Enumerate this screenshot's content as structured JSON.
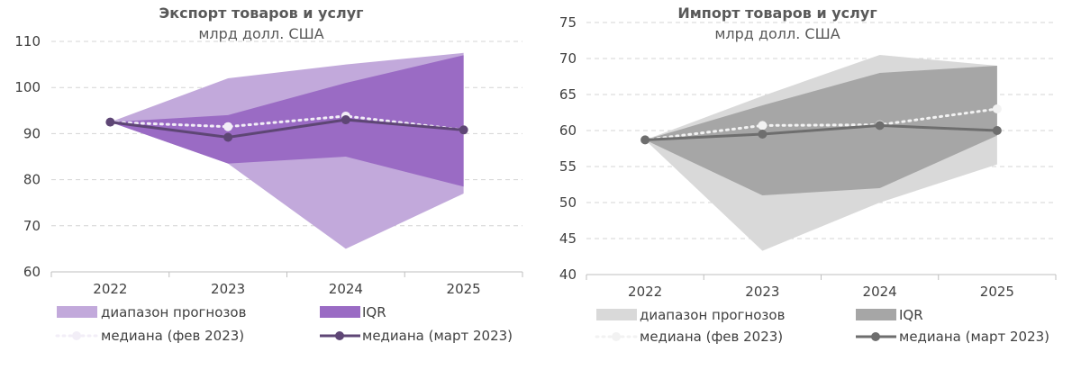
{
  "chart_data": [
    {
      "type": "area",
      "title": "Экспорт товаров и услуг",
      "subtitle": "млрд долл. США",
      "categories": [
        "2022",
        "2023",
        "2024",
        "2025"
      ],
      "ylim": [
        60,
        110
      ],
      "yticks": [
        60,
        70,
        80,
        90,
        100,
        110
      ],
      "grid": true,
      "legend_position": "bottom",
      "colors": {
        "range": "#c2a9db",
        "iqr": "#9a6bc4",
        "median_feb": "#f2eef7",
        "median_mar": "#5e4675",
        "grid": "#d4d4d4",
        "axis": "#bfbfbf"
      },
      "series": [
        {
          "name": "диапазон прогнозов",
          "kind": "band",
          "low": [
            92.5,
            83.5,
            65.0,
            77.0
          ],
          "high": [
            92.5,
            102.0,
            105.0,
            107.5
          ]
        },
        {
          "name": "IQR",
          "kind": "band",
          "low": [
            92.5,
            83.5,
            85.0,
            78.5
          ],
          "high": [
            92.5,
            94.0,
            101.0,
            107.0
          ]
        },
        {
          "name": "медиана (фев 2023)",
          "kind": "dotted",
          "values": [
            92.5,
            91.5,
            93.8,
            90.8
          ]
        },
        {
          "name": "медиана (март 2023)",
          "kind": "solid",
          "values": [
            92.5,
            89.2,
            93.0,
            90.8
          ]
        }
      ]
    },
    {
      "type": "area",
      "title": "Импорт товаров и услуг",
      "subtitle": "млрд долл. США",
      "categories": [
        "2022",
        "2023",
        "2024",
        "2025"
      ],
      "ylim": [
        40,
        75
      ],
      "yticks": [
        40,
        45,
        50,
        55,
        60,
        65,
        70,
        75
      ],
      "grid": true,
      "legend_position": "bottom",
      "colors": {
        "range": "#d9d9d9",
        "iqr": "#a6a6a6",
        "median_feb": "#f2f2f2",
        "median_mar": "#6e6e6e",
        "grid": "#d4d4d4",
        "axis": "#bfbfbf"
      },
      "series": [
        {
          "name": "диапазон прогнозов",
          "kind": "band",
          "low": [
            58.7,
            43.3,
            50.0,
            55.3
          ],
          "high": [
            58.7,
            64.8,
            70.5,
            69.0
          ]
        },
        {
          "name": "IQR",
          "kind": "band",
          "low": [
            58.7,
            51.0,
            52.0,
            59.3
          ],
          "high": [
            58.7,
            63.5,
            68.0,
            69.0
          ]
        },
        {
          "name": "медиана (фев 2023)",
          "kind": "dotted",
          "values": [
            58.7,
            60.7,
            60.8,
            63.0
          ]
        },
        {
          "name": "медиана (март 2023)",
          "kind": "solid",
          "values": [
            58.7,
            59.5,
            60.7,
            60.0
          ]
        }
      ]
    }
  ]
}
